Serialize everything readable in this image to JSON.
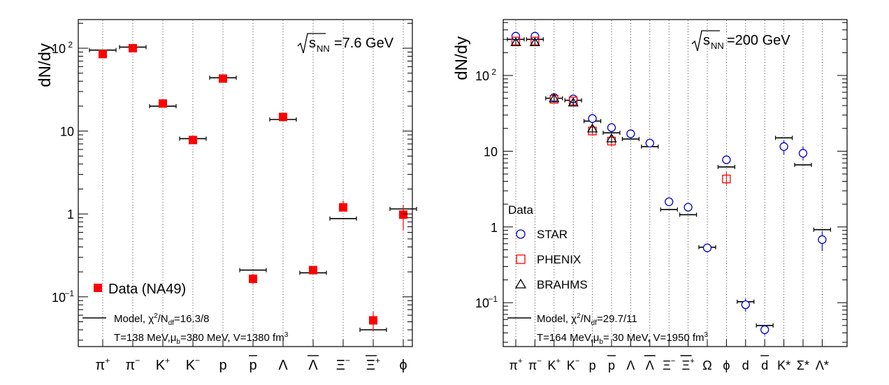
{
  "chart_data": [
    {
      "type": "scatter",
      "ylabel": "dN/dy",
      "yscale": "log",
      "ylim": [
        0.02,
        300
      ],
      "energy_label": "√sNN=7.6 GeV",
      "energy_label_parts": {
        "sqrt": "√",
        "s": "s",
        "sub": "NN",
        "rest": "=7.6 GeV"
      },
      "y_ticks": [
        {
          "value": 100,
          "base": "10",
          "exp": "2"
        },
        {
          "value": 10,
          "base": "10",
          "exp": ""
        },
        {
          "value": 1,
          "base": "1",
          "exp": ""
        },
        {
          "value": 0.1,
          "base": "10",
          "exp": "−1"
        }
      ],
      "categories": [
        {
          "base": "π",
          "sup": "+",
          "over": false
        },
        {
          "base": "π",
          "sup": "−",
          "over": false
        },
        {
          "base": "K",
          "sup": "+",
          "over": false
        },
        {
          "base": "K",
          "sup": "−",
          "over": false
        },
        {
          "base": "p",
          "sup": "",
          "over": false
        },
        {
          "base": "p",
          "sup": "",
          "over": true
        },
        {
          "base": "Λ",
          "sup": "",
          "over": false
        },
        {
          "base": "Λ",
          "sup": "",
          "over": true
        },
        {
          "base": "Ξ",
          "sup": "−",
          "over": false
        },
        {
          "base": "Ξ",
          "sup": "+",
          "over": true
        },
        {
          "base": "ϕ",
          "sup": "",
          "over": false
        }
      ],
      "series": [
        {
          "name": "Data (NA49)",
          "marker": "filled-square",
          "color": "#ff0000",
          "values": [
            85,
            100,
            21.5,
            7.8,
            43,
            0.165,
            14.8,
            0.21,
            1.2,
            0.052,
            0.98
          ],
          "err_low": [
            3,
            3,
            1,
            0.3,
            2,
            0.025,
            0.8,
            0.015,
            0.12,
            0.014,
            0.35
          ],
          "err_high": [
            3,
            3,
            1,
            0.3,
            2,
            0.025,
            0.8,
            0.015,
            0.25,
            0.014,
            0.3
          ]
        }
      ],
      "model": {
        "values": [
          95,
          103,
          20,
          8.1,
          44,
          0.21,
          13.8,
          0.195,
          0.88,
          0.04,
          1.15
        ]
      },
      "legend": {
        "data_label": "Data (NA49)",
        "model_label_prefix": "Model, χ",
        "model_label_sup": "2",
        "model_label_mid": "/N",
        "model_label_sub": "df",
        "model_label_value": "=16.3/8",
        "params_prefix": "T=138 MeV,μ",
        "params_sub": "b",
        "params_mid": "=380 MeV, V=1380 fm",
        "params_sup": "3"
      }
    },
    {
      "type": "scatter",
      "ylabel": "dN/dy",
      "yscale": "log",
      "ylim": [
        0.03,
        500
      ],
      "energy_label": "√sNN=200 GeV",
      "energy_label_parts": {
        "sqrt": "√",
        "s": "s",
        "sub": "NN",
        "rest": "=200 GeV"
      },
      "y_ticks": [
        {
          "value": 100,
          "base": "10",
          "exp": "2"
        },
        {
          "value": 10,
          "base": "10",
          "exp": ""
        },
        {
          "value": 1,
          "base": "1",
          "exp": ""
        },
        {
          "value": 0.1,
          "base": "10",
          "exp": "−1"
        }
      ],
      "categories": [
        {
          "base": "π",
          "sup": "+",
          "over": false
        },
        {
          "base": "π",
          "sup": "−",
          "over": false
        },
        {
          "base": "K",
          "sup": "+",
          "over": false
        },
        {
          "base": "K",
          "sup": "−",
          "over": false
        },
        {
          "base": "p",
          "sup": "",
          "over": false
        },
        {
          "base": "p",
          "sup": "",
          "over": true
        },
        {
          "base": "Λ",
          "sup": "",
          "over": false
        },
        {
          "base": "Λ",
          "sup": "",
          "over": true
        },
        {
          "base": "Ξ",
          "sup": "−",
          "over": false
        },
        {
          "base": "Ξ",
          "sup": "+",
          "over": true
        },
        {
          "base": "Ω",
          "sup": "",
          "over": false
        },
        {
          "base": "ϕ",
          "sup": "",
          "over": false
        },
        {
          "base": "d",
          "sup": "",
          "over": false
        },
        {
          "base": "d",
          "sup": "",
          "over": true
        },
        {
          "base": "K*",
          "sup": "",
          "over": false
        },
        {
          "base": "Σ*",
          "sup": "",
          "over": false
        },
        {
          "base": "Λ*",
          "sup": "",
          "over": false
        }
      ],
      "legend": {
        "header": "Data",
        "star_label": "STAR",
        "phenix_label": "PHENIX",
        "brahms_label": "BRAHMS",
        "model_label_prefix": "Model, χ",
        "model_label_sup": "2",
        "model_label_mid": "/N",
        "model_label_sub": "df",
        "model_label_value": "=29.7/11",
        "params_prefix": "T=164 MeV,μ",
        "params_sub": "b",
        "params_mid": "= 30 MeV, V=1950 fm",
        "params_sup": "3"
      },
      "series": [
        {
          "name": "STAR",
          "marker": "open-circle",
          "color": "#0000cc",
          "points": [
            {
              "i": 0,
              "v": 330,
              "el": 25,
              "eh": 25
            },
            {
              "i": 1,
              "v": 330,
              "el": 25,
              "eh": 25
            },
            {
              "i": 2,
              "v": 51,
              "el": 5,
              "eh": 5
            },
            {
              "i": 3,
              "v": 49,
              "el": 5,
              "eh": 5
            },
            {
              "i": 4,
              "v": 27,
              "el": 4,
              "eh": 4
            },
            {
              "i": 5,
              "v": 20.5,
              "el": 3,
              "eh": 3
            },
            {
              "i": 6,
              "v": 17,
              "el": 1.5,
              "eh": 1.5
            },
            {
              "i": 7,
              "v": 12.8,
              "el": 1.2,
              "eh": 1.2
            },
            {
              "i": 8,
              "v": 2.15,
              "el": 0.2,
              "eh": 0.2
            },
            {
              "i": 9,
              "v": 1.82,
              "el": 0.18,
              "eh": 0.18
            },
            {
              "i": 10,
              "v": 0.53,
              "el": 0.04,
              "eh": 0.04
            },
            {
              "i": 11,
              "v": 7.7,
              "el": 0.8,
              "eh": 0.8
            },
            {
              "i": 12,
              "v": 0.094,
              "el": 0.018,
              "eh": 0.02
            },
            {
              "i": 13,
              "v": 0.044,
              "el": 0.007,
              "eh": 0.007
            },
            {
              "i": 14,
              "v": 11.5,
              "el": 2.5,
              "eh": 2.5
            },
            {
              "i": 15,
              "v": 9.4,
              "el": 1.8,
              "eh": 2.2
            },
            {
              "i": 16,
              "v": 0.68,
              "el": 0.2,
              "eh": 0.2
            }
          ]
        },
        {
          "name": "PHENIX",
          "marker": "open-square",
          "color": "#ff0000",
          "points": [
            {
              "i": 0,
              "v": 285,
              "el": 30,
              "eh": 30
            },
            {
              "i": 1,
              "v": 285,
              "el": 30,
              "eh": 30
            },
            {
              "i": 2,
              "v": 48.5,
              "el": 5,
              "eh": 5
            },
            {
              "i": 3,
              "v": 46,
              "el": 5,
              "eh": 5
            },
            {
              "i": 4,
              "v": 18.5,
              "el": 2.5,
              "eh": 2.5
            },
            {
              "i": 5,
              "v": 13.6,
              "el": 2,
              "eh": 2
            },
            {
              "i": 11,
              "v": 4.3,
              "el": 0.7,
              "eh": 1.0
            }
          ]
        },
        {
          "name": "BRAHMS",
          "marker": "open-triangle",
          "color": "#000000",
          "points": [
            {
              "i": 0,
              "v": 275,
              "el": 20,
              "eh": 20
            },
            {
              "i": 1,
              "v": 275,
              "el": 20,
              "eh": 20
            },
            {
              "i": 2,
              "v": 50,
              "el": 4,
              "eh": 4
            },
            {
              "i": 3,
              "v": 44,
              "el": 4,
              "eh": 4
            },
            {
              "i": 4,
              "v": 20,
              "el": 2,
              "eh": 2
            },
            {
              "i": 5,
              "v": 14.8,
              "el": 2,
              "eh": 2
            }
          ]
        }
      ],
      "model": {
        "values": [
          300,
          300,
          50,
          47,
          25,
          17.5,
          14.5,
          11.5,
          1.7,
          1.45,
          0.54,
          6.2,
          0.103,
          0.05,
          15,
          6.6,
          0.92
        ]
      }
    }
  ]
}
